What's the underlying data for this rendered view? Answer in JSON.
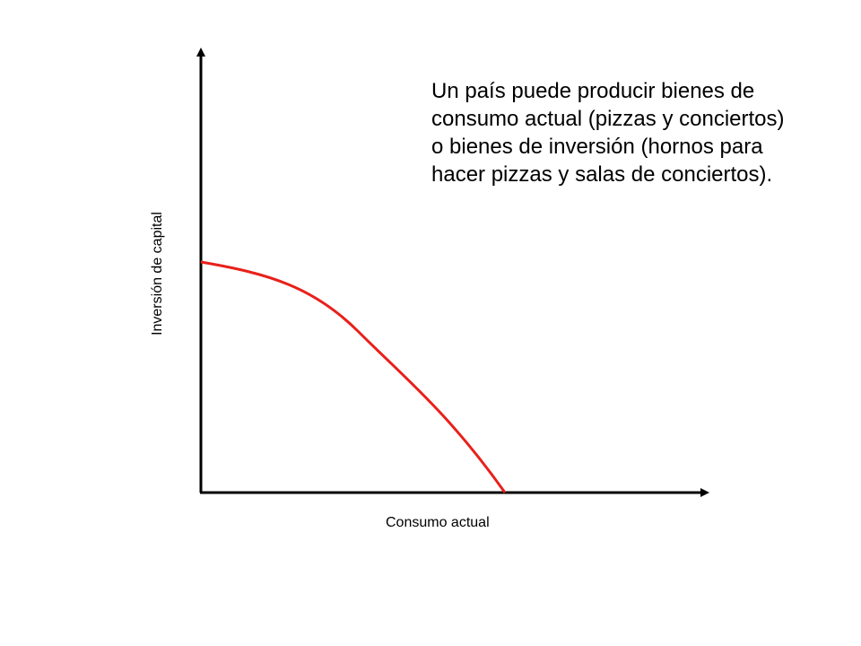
{
  "caption": {
    "lines": [
      "Un país puede producir bienes de",
      "consumo actual (pizzas y conciertos)",
      "o bienes de inversión (hornos para",
      "hacer pizzas y salas de conciertos)."
    ]
  },
  "axes": {
    "x_label": "Consumo actual",
    "y_label": "Inversión de capital"
  },
  "colors": {
    "curve": "#e8201a",
    "axes": "#000000"
  },
  "curve": {
    "type": "concave-frontier"
  }
}
